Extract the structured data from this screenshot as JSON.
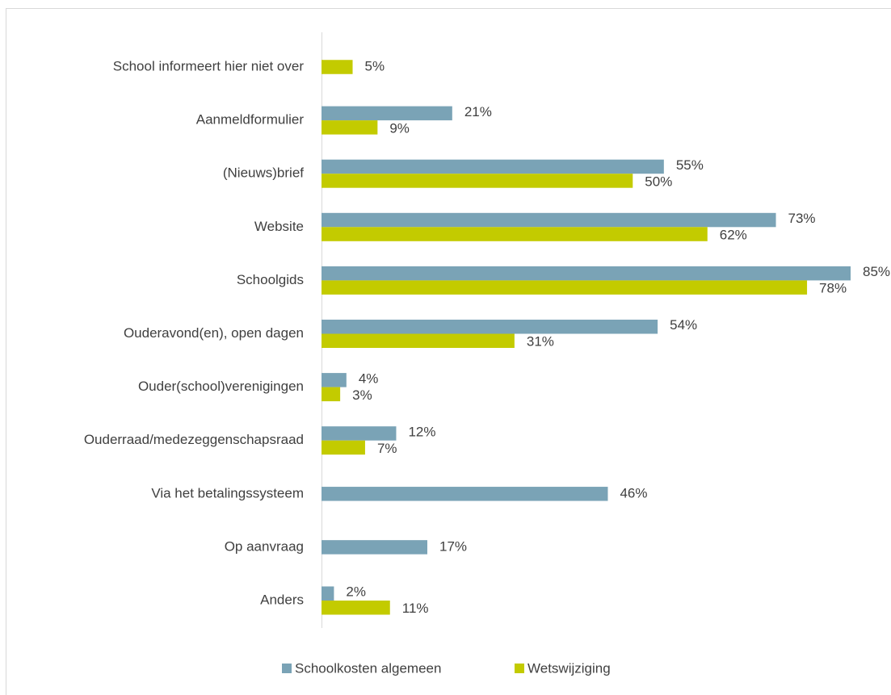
{
  "chart_data": {
    "type": "hbar",
    "categories": [
      "School informeert hier niet over",
      "Aanmeldformulier",
      "(Nieuws)brief",
      "Website",
      "Schoolgids",
      "Ouderavond(en), open dagen",
      "Ouder(school)verenigingen",
      "Ouderraad/medezeggenschapsraad",
      "Via het betalingssysteem",
      "Op aanvraag",
      "Anders"
    ],
    "series": [
      {
        "name": "Schoolkosten algemeen",
        "color": "#7aa3b6",
        "values": [
          null,
          21,
          55,
          73,
          85,
          54,
          4,
          12,
          46,
          17,
          2
        ],
        "value_labels": [
          null,
          "21%",
          "55%",
          "73%",
          "85%",
          "54%",
          "4%",
          "12%",
          "46%",
          "17%",
          "2%"
        ]
      },
      {
        "name": "Wetswijziging",
        "color": "#c3cb00",
        "values": [
          5,
          9,
          50,
          62,
          78,
          31,
          3,
          7,
          null,
          null,
          11
        ],
        "value_labels": [
          "5%",
          "9%",
          "50%",
          "62%",
          "78%",
          "31%",
          "3%",
          "7%",
          null,
          null,
          "11%"
        ]
      }
    ],
    "legend": "bottom"
  }
}
